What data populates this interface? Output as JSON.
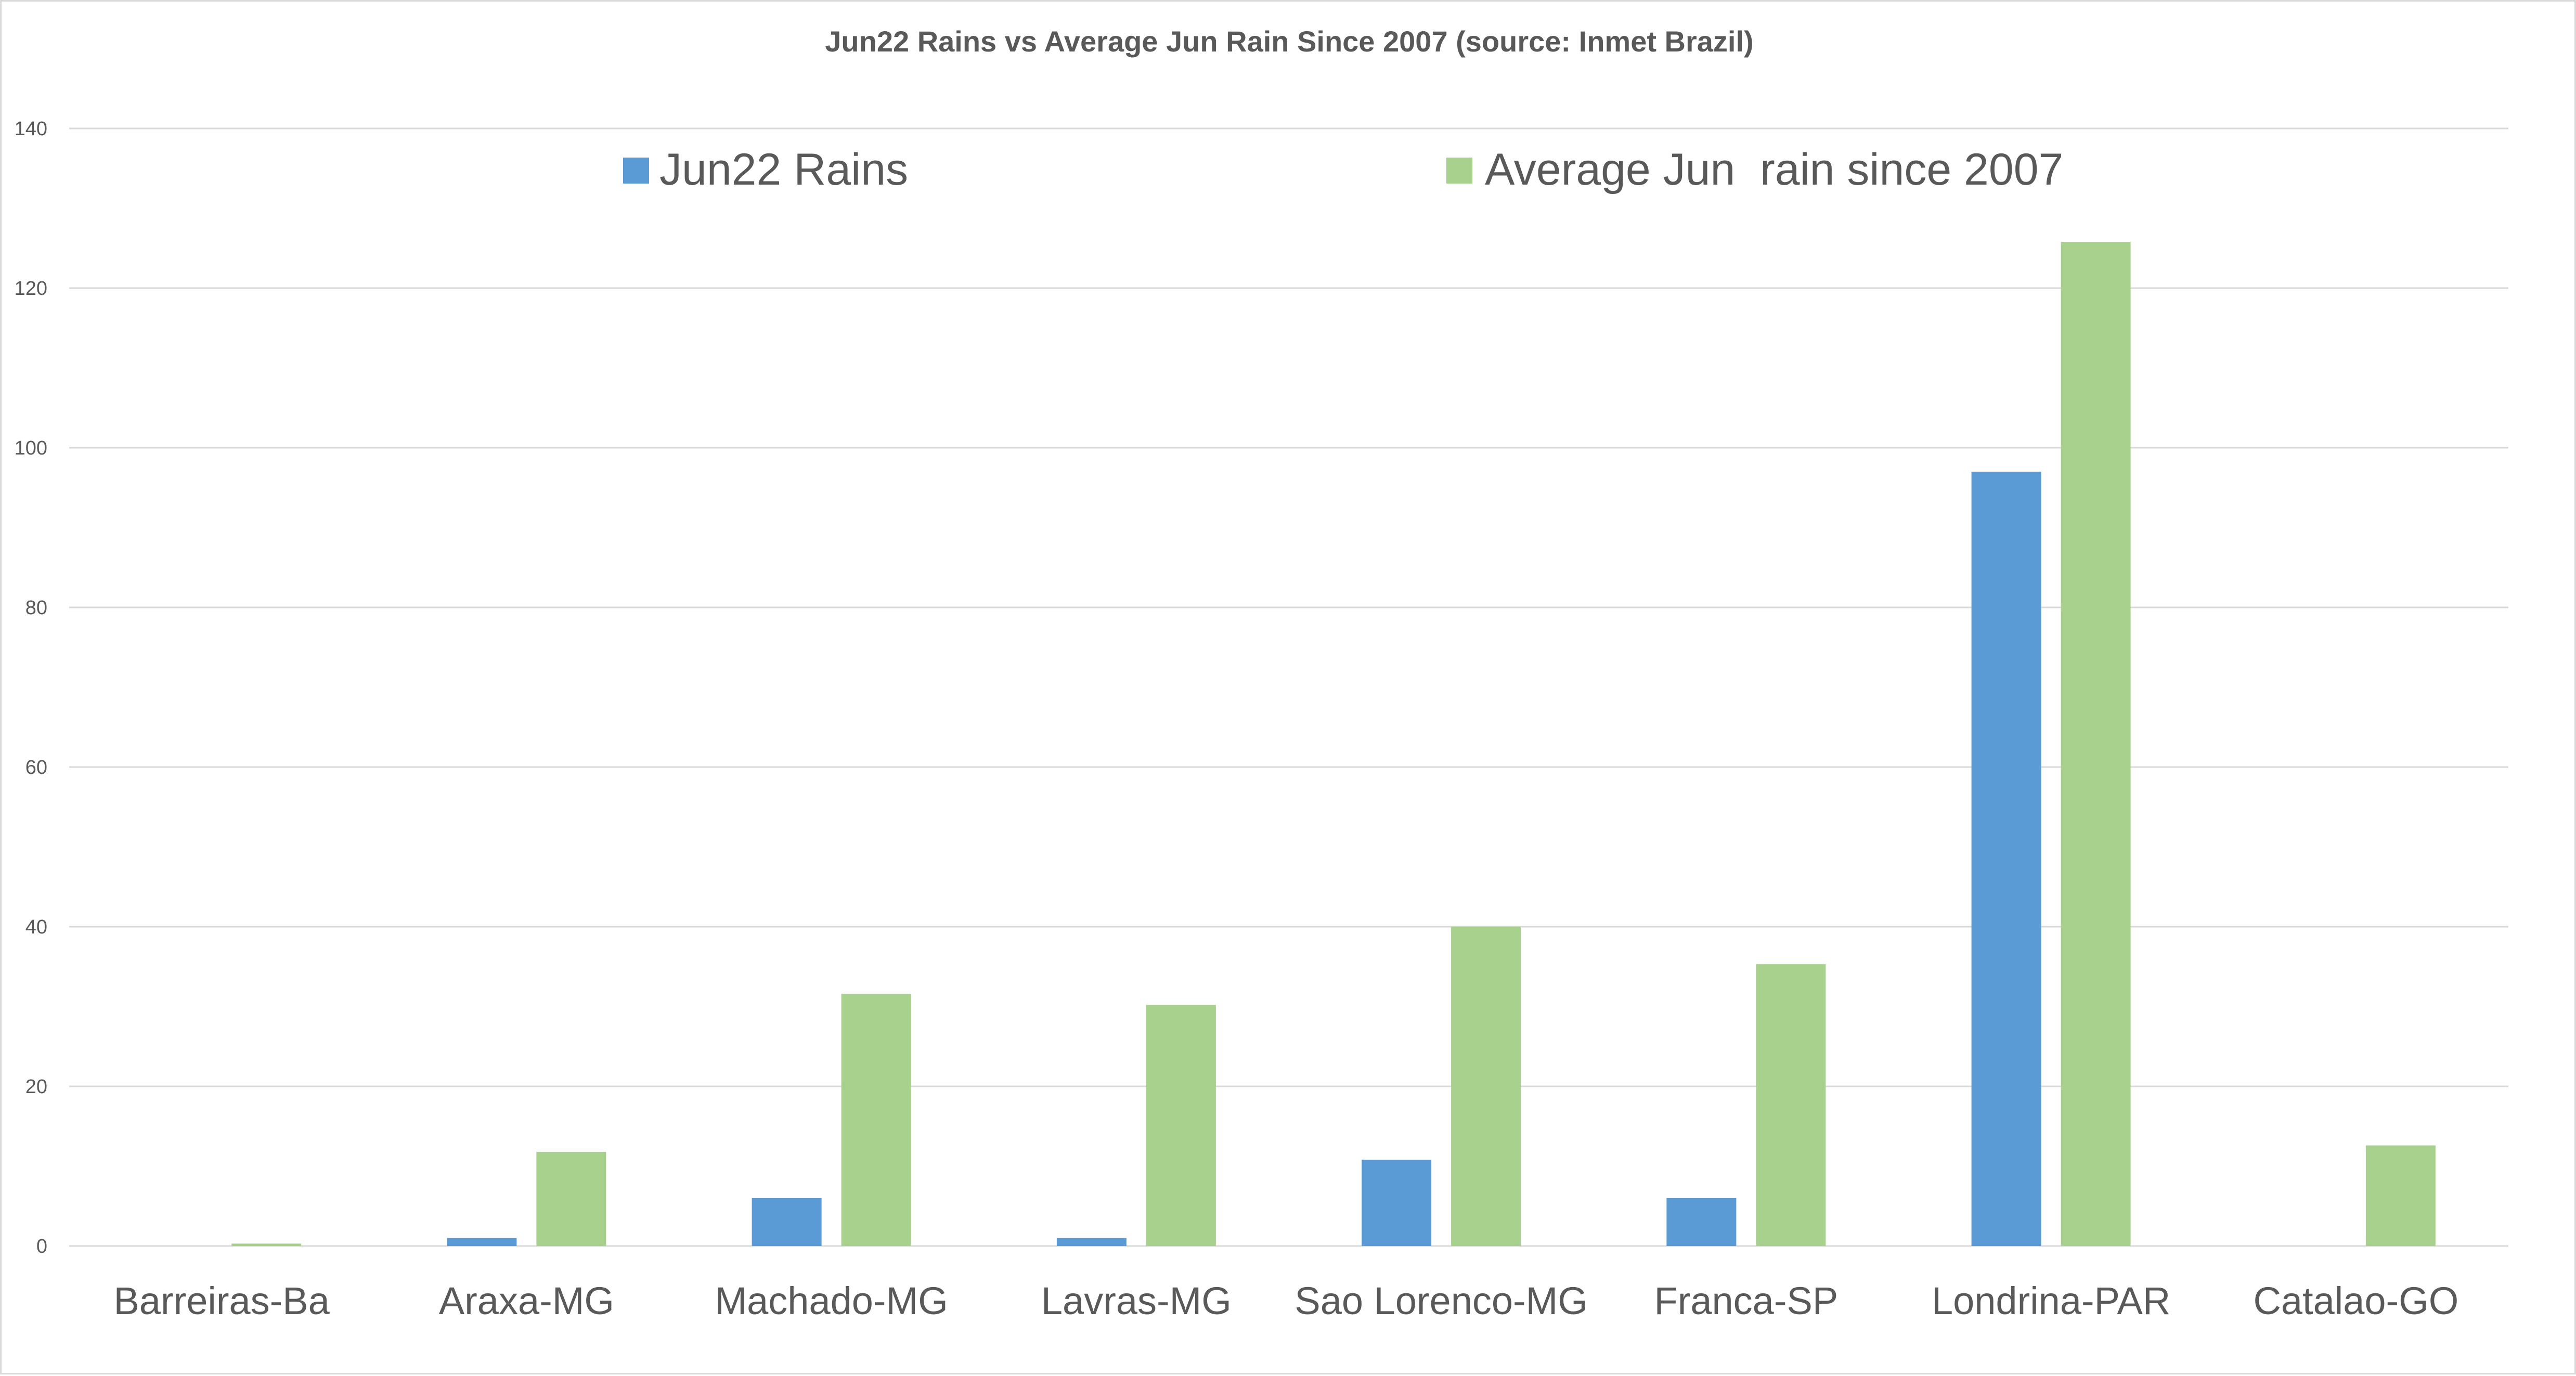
{
  "chart_data": {
    "type": "bar",
    "title": "Jun22 Rains vs Average Jun Rain Since 2007 (source: Inmet Brazil)",
    "xlabel": "",
    "ylabel": "",
    "ylim": [
      0,
      140
    ],
    "yticks": [
      "0",
      "20",
      "40",
      "60",
      "80",
      "100",
      "120",
      "140"
    ],
    "grid": true,
    "legend_position": "top",
    "categories": [
      "Barreiras-Ba",
      "Araxa-MG",
      "Machado-MG",
      "Lavras-MG",
      "Sao Lorenco-MG",
      "Franca-SP",
      "Londrina-PAR",
      "Catalao-GO"
    ],
    "series": [
      {
        "name": "Jun22 Rains",
        "color": "#5b9bd5",
        "values": [
          0,
          1,
          6,
          1,
          10.8,
          6,
          97,
          0
        ]
      },
      {
        "name": "Average Jun  rain since 2007",
        "color": "#a9d18e",
        "values": [
          0.3,
          11.8,
          31.6,
          30.2,
          40,
          35.3,
          125.8,
          12.6
        ]
      }
    ]
  }
}
